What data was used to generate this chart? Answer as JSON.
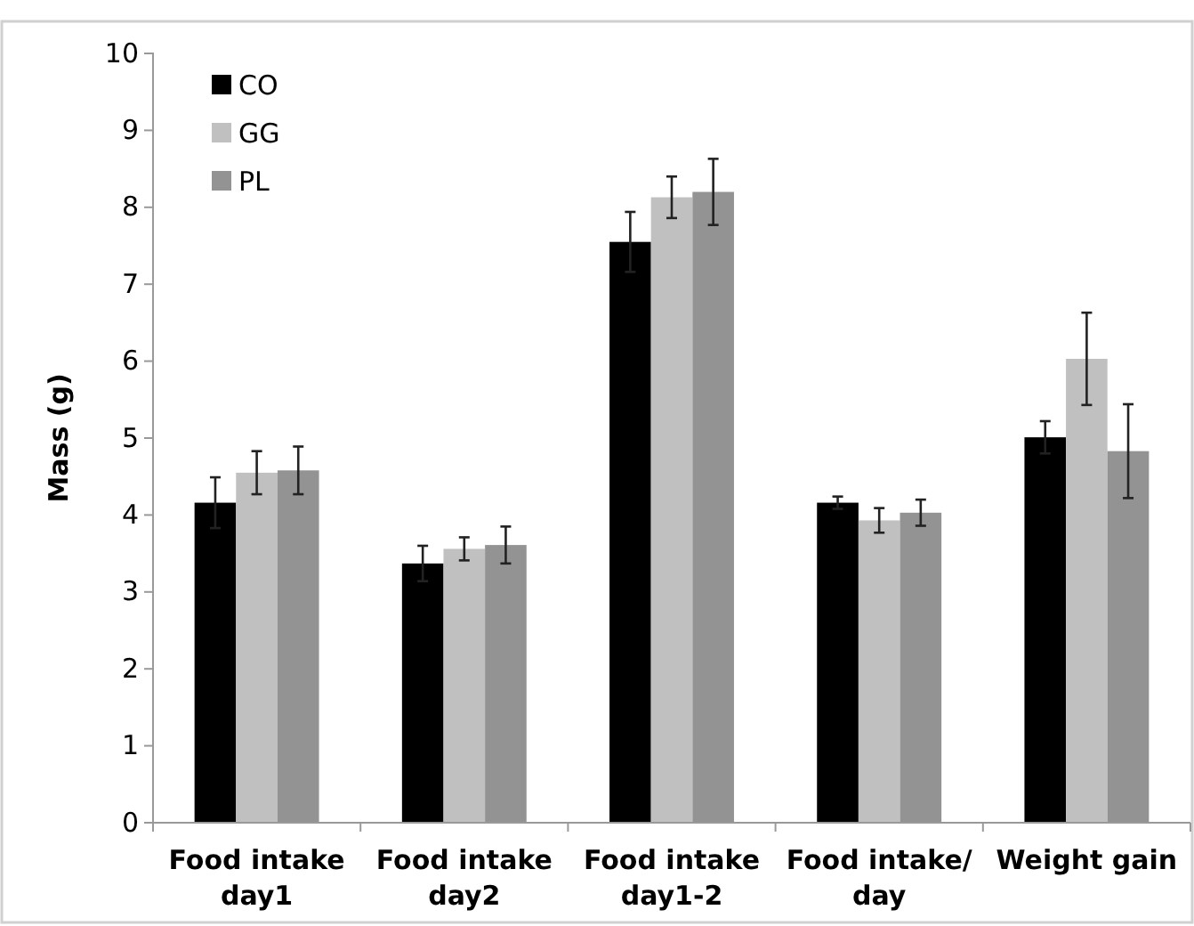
{
  "chart_data": {
    "type": "bar",
    "ylabel": "Mass (g)",
    "categories": [
      "Food intake day1",
      "Food intake day2",
      "Food intake day1-2",
      "Food intake/ day",
      "Weight gain"
    ],
    "series": [
      {
        "name": "CO",
        "color": "#000000",
        "values": [
          4.16,
          3.37,
          7.55,
          4.16,
          5.01
        ],
        "errors": [
          0.33,
          0.23,
          0.39,
          0.08,
          0.21
        ]
      },
      {
        "name": "GG",
        "color": "#c0c0c0",
        "values": [
          4.55,
          3.56,
          8.13,
          3.93,
          6.03
        ],
        "errors": [
          0.28,
          0.15,
          0.27,
          0.16,
          0.6
        ]
      },
      {
        "name": "PL",
        "color": "#939393",
        "values": [
          4.58,
          3.61,
          8.2,
          4.03,
          4.83
        ],
        "errors": [
          0.31,
          0.24,
          0.43,
          0.17,
          0.61
        ]
      }
    ],
    "ylim": [
      0,
      10
    ],
    "yticks": [
      0,
      1,
      2,
      3,
      4,
      5,
      6,
      7,
      8,
      9,
      10
    ],
    "legend": "top left"
  }
}
